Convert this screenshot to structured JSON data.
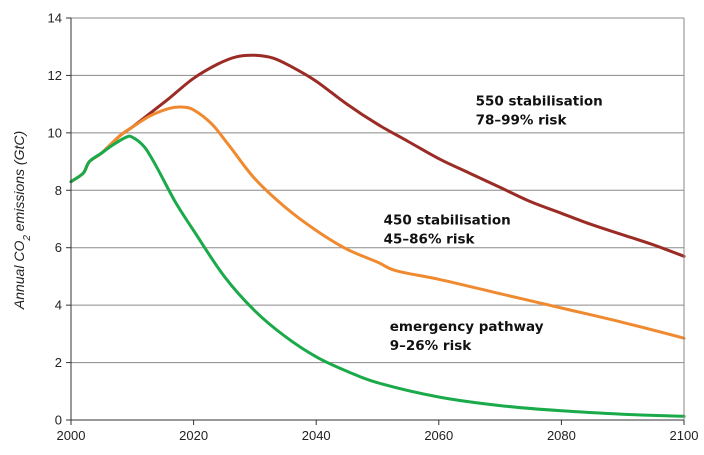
{
  "chart_data": {
    "type": "line",
    "title": "",
    "xlabel": "",
    "ylabel_main": "Annual CO",
    "ylabel_sub": "2",
    "ylabel_tail": " emissions (GtC)",
    "xlim": [
      2000,
      2100
    ],
    "ylim": [
      0,
      14
    ],
    "xticks": [
      "2000",
      "2020",
      "2040",
      "2060",
      "2080",
      "2100"
    ],
    "yticks": [
      "0",
      "2",
      "4",
      "6",
      "8",
      "10",
      "12",
      "14"
    ],
    "grid": "horizontal",
    "series": [
      {
        "color": "#9b2c25",
        "x": [
          2000,
          2002,
          2003,
          2005,
          2008,
          2010,
          2013,
          2016,
          2020,
          2024,
          2027,
          2030,
          2033,
          2036,
          2040,
          2045,
          2050,
          2055,
          2060,
          2065,
          2070,
          2075,
          2080,
          2085,
          2090,
          2095,
          2100
        ],
        "y": [
          8.3,
          8.6,
          9.0,
          9.3,
          9.9,
          10.2,
          10.7,
          11.2,
          11.9,
          12.4,
          12.65,
          12.7,
          12.6,
          12.3,
          11.8,
          11.0,
          10.3,
          9.7,
          9.1,
          8.6,
          8.1,
          7.6,
          7.2,
          6.8,
          6.45,
          6.1,
          5.7
        ]
      },
      {
        "color": "#f08a30",
        "x": [
          2000,
          2002,
          2003,
          2005,
          2008,
          2010,
          2013,
          2016,
          2018,
          2020,
          2023,
          2026,
          2030,
          2035,
          2040,
          2045,
          2050,
          2053,
          2060,
          2070,
          2080,
          2090,
          2100
        ],
        "y": [
          8.3,
          8.6,
          9.0,
          9.3,
          9.9,
          10.2,
          10.6,
          10.85,
          10.9,
          10.8,
          10.3,
          9.5,
          8.4,
          7.4,
          6.6,
          5.95,
          5.5,
          5.2,
          4.9,
          4.4,
          3.9,
          3.4,
          2.85
        ]
      },
      {
        "color": "#1aaa4a",
        "x": [
          2000,
          2002,
          2003,
          2005,
          2007,
          2009,
          2010,
          2012,
          2014,
          2017,
          2020,
          2025,
          2030,
          2035,
          2040,
          2045,
          2050,
          2060,
          2070,
          2080,
          2090,
          2100
        ],
        "y": [
          8.3,
          8.6,
          9.0,
          9.3,
          9.6,
          9.85,
          9.85,
          9.5,
          8.8,
          7.6,
          6.6,
          5.0,
          3.8,
          2.9,
          2.2,
          1.7,
          1.3,
          0.8,
          0.5,
          0.32,
          0.2,
          0.13
        ]
      }
    ],
    "annotations": [
      {
        "line1": "550 stabilisation",
        "line2": "78–99% risk",
        "x": 2066,
        "y": 10.95,
        "color": "#9b2c25"
      },
      {
        "line1": "450 stabilisation",
        "line2": "45–86% risk",
        "x": 2051,
        "y": 6.8,
        "color": "#f08a30"
      },
      {
        "line1": "emergency pathway",
        "line2": "9–26% risk",
        "x": 2052,
        "y": 3.1,
        "color": "#1aaa4a"
      }
    ]
  }
}
